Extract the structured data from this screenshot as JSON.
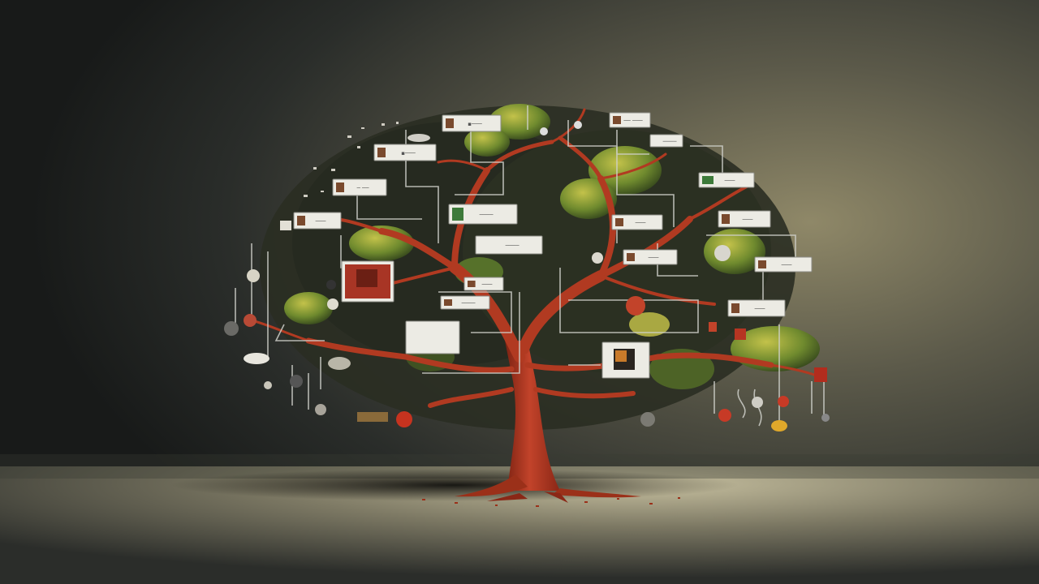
{
  "scene": {
    "subject": "red-tree-with-hanging-cards",
    "colors": {
      "backdrop_dark": "#1b1e1c",
      "backdrop_light": "#8a8264",
      "floor": "#b8b294",
      "trunk": "#b9371f",
      "trunk_dark": "#7c2212",
      "foliage": "#6f8a2e",
      "foliage_light": "#b3b845",
      "wire": "#c9c9c4",
      "card": "#ecebe4",
      "card_border": "#8c8c86"
    },
    "cards": [
      {
        "text": "▪───",
        "icon": "photo"
      },
      {
        "text": "▪───",
        "icon": "photo"
      },
      {
        "text": "─ ──",
        "icon": "photo"
      },
      {
        "text": "───",
        "icon": "photo"
      },
      {
        "text": "────",
        "icon": "green"
      },
      {
        "text": "────",
        "icon": "none"
      },
      {
        "text": "── ───",
        "icon": "photo"
      },
      {
        "text": "────",
        "icon": "none"
      },
      {
        "text": "───",
        "icon": "green"
      },
      {
        "text": "───",
        "icon": "photo"
      },
      {
        "text": "───",
        "icon": "photo"
      },
      {
        "text": "───",
        "icon": "photo"
      },
      {
        "text": "───",
        "icon": "photo"
      },
      {
        "text": "───",
        "icon": "photo"
      },
      {
        "text": "───",
        "icon": "photo"
      },
      {
        "text": "────",
        "icon": "photo"
      },
      {
        "text": "",
        "icon": "red"
      },
      {
        "text": "",
        "icon": "none"
      },
      {
        "text": "",
        "icon": "bucket"
      }
    ]
  }
}
